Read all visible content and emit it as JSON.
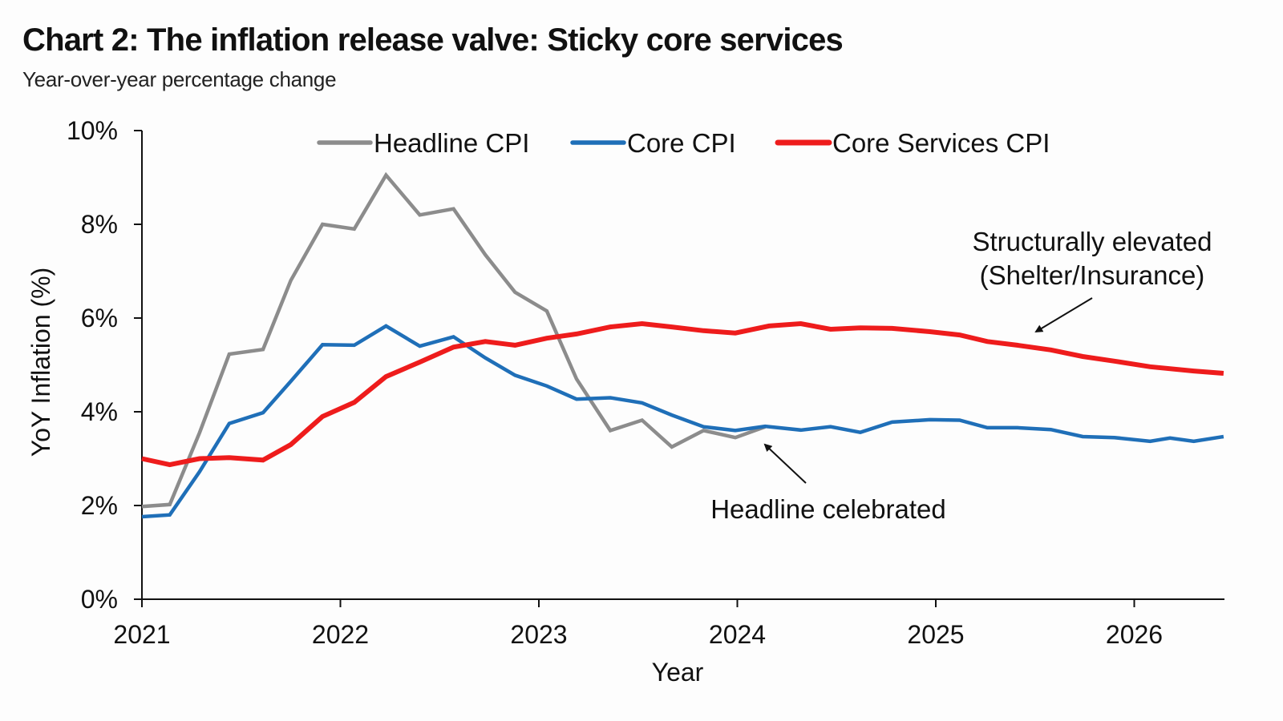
{
  "chart_data": {
    "type": "line",
    "title": "Chart 2: The inflation release valve: Sticky core services",
    "subtitle": "Year-over-year percentage change",
    "xlabel": "Year",
    "ylabel": "YoY Inflation (%)",
    "xlim": [
      2021,
      2026.45
    ],
    "ylim": [
      0,
      10
    ],
    "x_ticks": [
      "2021",
      "2022",
      "2023",
      "2024",
      "2025",
      "2026"
    ],
    "y_ticks": [
      "0%",
      "2%",
      "4%",
      "6%",
      "8%",
      "10%"
    ],
    "grid": false,
    "legend_position": "top",
    "series": [
      {
        "name": "Headline CPI",
        "color": "#8c8c8c",
        "x": [
          2021.0,
          2021.14,
          2021.29,
          2021.44,
          2021.61,
          2021.75,
          2021.91,
          2022.07,
          2022.23,
          2022.4,
          2022.57,
          2022.73,
          2022.88,
          2023.04,
          2023.19,
          2023.36,
          2023.52,
          2023.67,
          2023.83,
          2023.99,
          2024.14
        ],
        "y": [
          1.98,
          2.02,
          3.55,
          5.23,
          5.33,
          6.8,
          8.0,
          7.9,
          9.05,
          8.2,
          8.33,
          7.35,
          6.55,
          6.15,
          4.7,
          3.6,
          3.82,
          3.25,
          3.6,
          3.45,
          3.68
        ]
      },
      {
        "name": "Core CPI",
        "color": "#1f6fb8",
        "x": [
          2021.0,
          2021.14,
          2021.29,
          2021.44,
          2021.61,
          2021.75,
          2021.91,
          2022.07,
          2022.23,
          2022.4,
          2022.57,
          2022.73,
          2022.88,
          2023.04,
          2023.19,
          2023.36,
          2023.52,
          2023.67,
          2023.83,
          2023.99,
          2024.14,
          2024.32,
          2024.47,
          2024.62,
          2024.78,
          2024.97,
          2025.12,
          2025.26,
          2025.41,
          2025.58,
          2025.74,
          2025.9,
          2026.08,
          2026.18,
          2026.3,
          2026.45
        ],
        "y": [
          1.76,
          1.8,
          2.72,
          3.75,
          3.98,
          4.65,
          5.43,
          5.42,
          5.83,
          5.4,
          5.6,
          5.15,
          4.78,
          4.55,
          4.27,
          4.3,
          4.19,
          3.93,
          3.68,
          3.6,
          3.69,
          3.61,
          3.68,
          3.56,
          3.78,
          3.83,
          3.82,
          3.66,
          3.66,
          3.62,
          3.47,
          3.45,
          3.37,
          3.44,
          3.37,
          3.47
        ]
      },
      {
        "name": "Core Services CPI",
        "color": "#ee1c1c",
        "x": [
          2021.0,
          2021.14,
          2021.29,
          2021.44,
          2021.61,
          2021.75,
          2021.91,
          2022.07,
          2022.23,
          2022.4,
          2022.57,
          2022.73,
          2022.88,
          2023.04,
          2023.19,
          2023.36,
          2023.52,
          2023.67,
          2023.83,
          2023.99,
          2024.16,
          2024.32,
          2024.47,
          2024.62,
          2024.78,
          2024.97,
          2025.12,
          2025.26,
          2025.41,
          2025.58,
          2025.74,
          2025.9,
          2026.08,
          2026.3,
          2026.45
        ],
        "y": [
          3.0,
          2.87,
          3.0,
          3.02,
          2.97,
          3.3,
          3.9,
          4.2,
          4.75,
          5.06,
          5.38,
          5.5,
          5.42,
          5.57,
          5.66,
          5.81,
          5.88,
          5.81,
          5.73,
          5.68,
          5.83,
          5.88,
          5.76,
          5.79,
          5.78,
          5.71,
          5.64,
          5.5,
          5.42,
          5.32,
          5.18,
          5.08,
          4.96,
          4.87,
          4.82
        ]
      }
    ],
    "annotations": [
      {
        "text_lines": [
          "Structurally elevated",
          "(Shelter/Insurance)"
        ],
        "points_to_series": "Core Services CPI"
      },
      {
        "text_lines": [
          "Headline celebrated"
        ],
        "points_to_series": "Headline CPI"
      }
    ]
  }
}
